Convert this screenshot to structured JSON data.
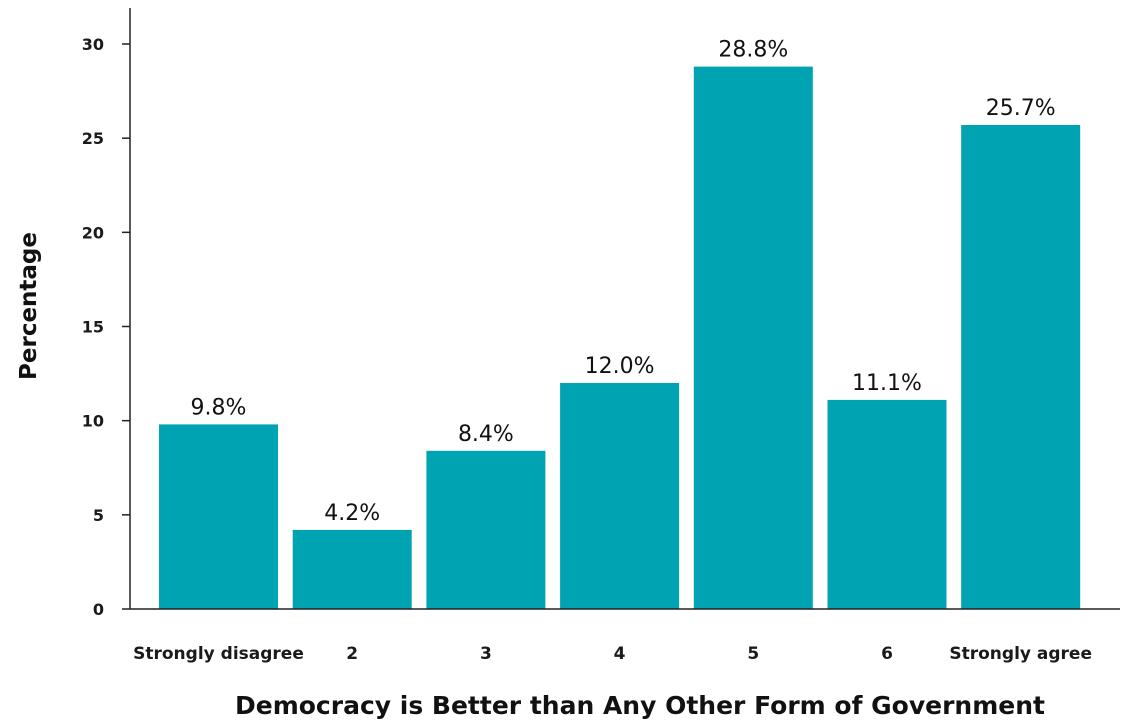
{
  "chart_data": {
    "type": "bar",
    "categories": [
      "Strongly disagree",
      "2",
      "3",
      "4",
      "5",
      "6",
      "Strongly agree"
    ],
    "values": [
      9.8,
      4.2,
      8.4,
      12.0,
      28.8,
      11.1,
      25.7
    ],
    "data_labels": [
      "9.8%",
      "4.2%",
      "8.4%",
      "12.0%",
      "28.8%",
      "11.1%",
      "25.7%"
    ],
    "title": "",
    "xlabel": "Democracy is Better than Any Other Form of Government",
    "ylabel": "Percentage",
    "ylim": [
      0,
      30
    ],
    "yticks": [
      0,
      5,
      10,
      15,
      20,
      25,
      30
    ],
    "grid": false,
    "bar_color": "#00a3b2"
  }
}
